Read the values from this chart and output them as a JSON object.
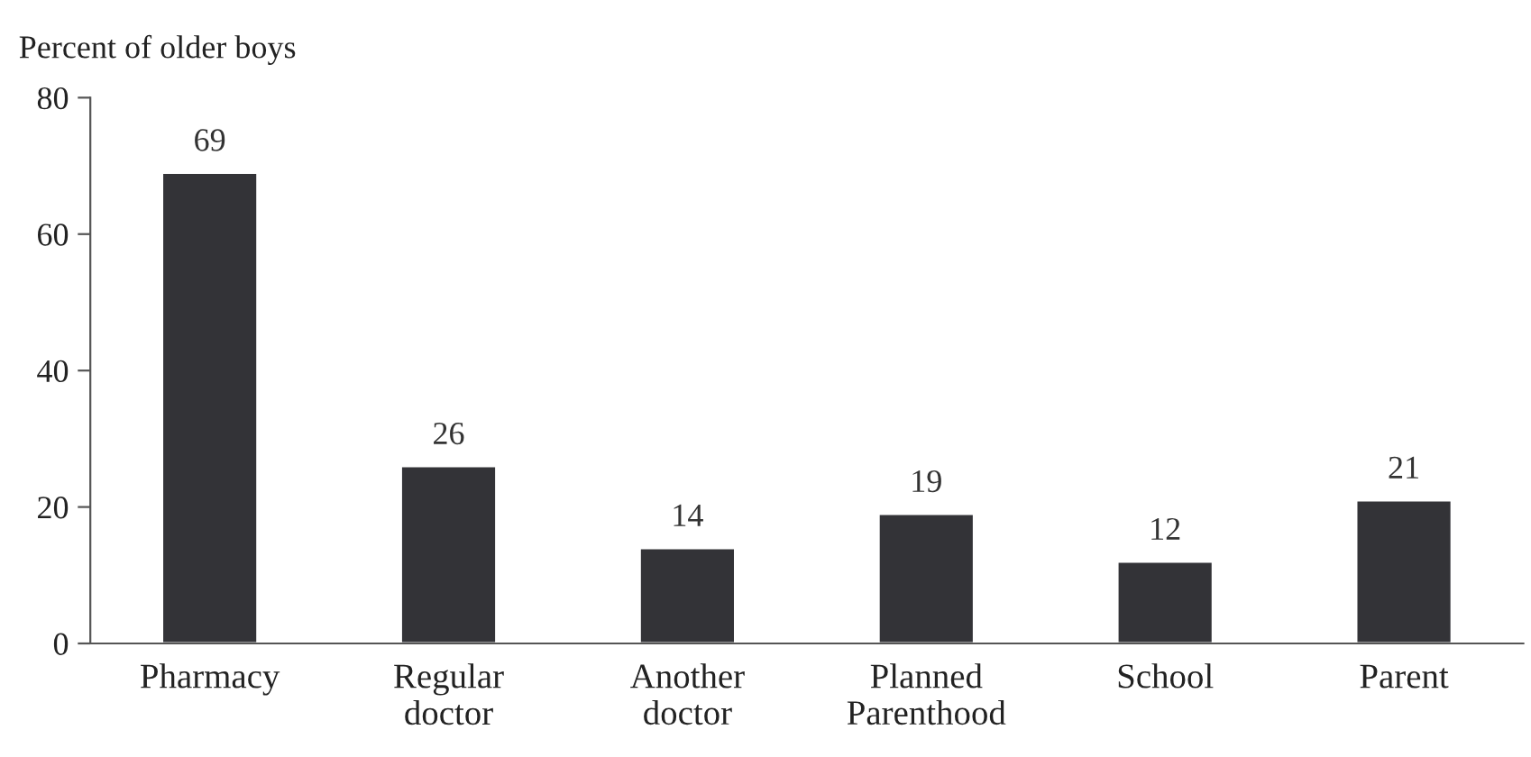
{
  "chart_data": {
    "type": "bar",
    "ylabel": "Percent of older boys",
    "categories": [
      "Pharmacy",
      "Regular\ndoctor",
      "Another\ndoctor",
      "Planned\nParenthood",
      "School",
      "Parent"
    ],
    "values": [
      69,
      26,
      14,
      19,
      12,
      21
    ],
    "color": "#333337",
    "ylim": [
      0,
      80
    ],
    "yticks": [
      0,
      20,
      40,
      60,
      80
    ],
    "grid": false,
    "data_labels": true
  }
}
